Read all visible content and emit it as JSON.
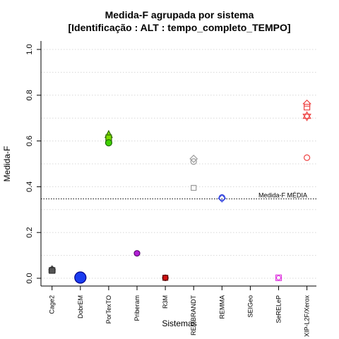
{
  "chart_data": {
    "type": "scatter",
    "title_line1": "Medida-F agrupada por sistema",
    "title_line2": "[Identificação : ALT : tempo_completo_TEMPO]",
    "xlabel": "Sistemas",
    "ylabel": "Medida-F",
    "ylim": [
      0,
      1
    ],
    "yticks": [
      "0.0",
      "0.2",
      "0.4",
      "0.6",
      "0.8",
      "1.0"
    ],
    "grid": "horizontal dotted",
    "categories": [
      "Cage2",
      "DobrEM",
      "PorTexTO",
      "Priberam",
      "R3M",
      "REMBRANDT",
      "REMMA",
      "SEIGeo",
      "SeRELeP",
      "XIP-L2F/Xerox"
    ],
    "reference_line": {
      "label": "Medida-F MÉDIA",
      "value": 0.347
    },
    "points": [
      {
        "category": "Cage2",
        "y": 0.036,
        "shape": "circle",
        "fill": "#555555",
        "stroke": "#333333",
        "size": 4.5
      },
      {
        "category": "Cage2",
        "y": 0.038,
        "shape": "triangle",
        "fill": "#555555",
        "stroke": "#333333",
        "size": 4.5
      },
      {
        "category": "Cage2",
        "y": 0.034,
        "shape": "square",
        "fill": "#555555",
        "stroke": "#333333",
        "size": 4
      },
      {
        "category": "DobrEM",
        "y": 0.003,
        "shape": "circle",
        "fill": "#1a3cf0",
        "stroke": "#00008b",
        "size": 8
      },
      {
        "category": "PorTexTO",
        "y": 0.627,
        "shape": "triangle",
        "fill": "#7ddc00",
        "stroke": "#2e6b00",
        "size": 5
      },
      {
        "category": "PorTexTO",
        "y": 0.614,
        "shape": "square",
        "fill": "#7ddc00",
        "stroke": "#2e6b00",
        "size": 4
      },
      {
        "category": "PorTexTO",
        "y": 0.592,
        "shape": "circle",
        "fill": "#3fd000",
        "stroke": "#1e6b00",
        "size": 4.5
      },
      {
        "category": "Priberam",
        "y": 0.109,
        "shape": "circle",
        "fill": "#b21fd6",
        "stroke": "#5a0a70",
        "size": 4
      },
      {
        "category": "R3M",
        "y": 0.002,
        "shape": "circle",
        "fill": "#d01010",
        "stroke": "#5a0000",
        "size": 4
      },
      {
        "category": "R3M",
        "y": 0.002,
        "shape": "square",
        "fill": "#d01010",
        "stroke": "#5a0000",
        "size": 3.5
      },
      {
        "category": "REMBRANDT",
        "y": 0.522,
        "shape": "diamond",
        "fill": "none",
        "stroke": "#999999",
        "size": 5
      },
      {
        "category": "REMBRANDT",
        "y": 0.51,
        "shape": "circle",
        "fill": "none",
        "stroke": "#999999",
        "size": 4
      },
      {
        "category": "REMBRANDT",
        "y": 0.395,
        "shape": "square",
        "fill": "none",
        "stroke": "#999999",
        "size": 3.5
      },
      {
        "category": "REMMA",
        "y": 0.353,
        "shape": "circle",
        "fill": "none",
        "stroke": "#3344dd",
        "size": 4
      },
      {
        "category": "REMMA",
        "y": 0.349,
        "shape": "diamond",
        "fill": "none",
        "stroke": "#3344dd",
        "size": 5
      },
      {
        "category": "SeRELeP",
        "y": 0.002,
        "shape": "square",
        "fill": "none",
        "stroke": "#e040e0",
        "size": 4
      },
      {
        "category": "SeRELeP",
        "y": 0.002,
        "shape": "circle",
        "fill": "none",
        "stroke": "#e040e0",
        "size": 3
      },
      {
        "category": "XIP-L2F/Xerox",
        "y": 0.763,
        "shape": "house",
        "fill": "none",
        "stroke": "#ee4444",
        "size": 5
      },
      {
        "category": "XIP-L2F/Xerox",
        "y": 0.748,
        "shape": "square",
        "fill": "none",
        "stroke": "#ee4444",
        "size": 4
      },
      {
        "category": "XIP-L2F/Xerox",
        "y": 0.708,
        "shape": "star6",
        "fill": "none",
        "stroke": "#ee4444",
        "size": 6
      },
      {
        "category": "XIP-L2F/Xerox",
        "y": 0.527,
        "shape": "circle",
        "fill": "none",
        "stroke": "#ee4444",
        "size": 4
      }
    ]
  }
}
